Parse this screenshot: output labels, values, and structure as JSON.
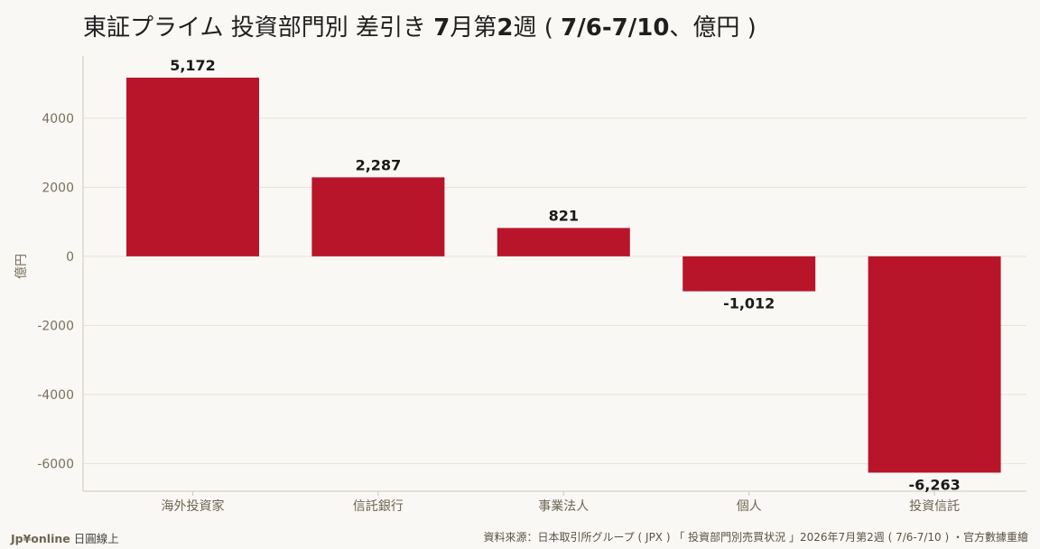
{
  "title": {
    "prefix": "東証プライム 投資部門別 差引き ",
    "week_bold": "7",
    "week_mid": "月第",
    "week_num": "2",
    "week_suffix": "週 ( ",
    "range_bold": "7/6-7/10",
    "range_suffix": "、億円 )"
  },
  "footer": {
    "brand": "Jp¥online",
    "brand_suffix": " 日圓線上",
    "source": "資料來源：日本取引所グループ ( JPX ) 「 投資部門別売買状況 」2026年7月第2週 ( 7/6-7/10 ) ・官方數據重繪"
  },
  "chart_data": {
    "type": "bar",
    "categories": [
      "海外投資家",
      "信託銀行",
      "事業法人",
      "個人",
      "投資信託"
    ],
    "values": [
      5172,
      2287,
      821,
      -1012,
      -6263
    ],
    "value_labels": [
      "5,172",
      "2,287",
      "821",
      "-1,012",
      "-6,263"
    ],
    "ylabel": "億円",
    "ylim": [
      -6800,
      5800
    ],
    "yticks": [
      4000,
      2000,
      0,
      -2000,
      -4000,
      -6000
    ],
    "ytick_labels": [
      "4000",
      "2000",
      "0",
      "-2000",
      "-4000",
      "-6000"
    ],
    "grid": true,
    "bar_color": "#b8152b"
  }
}
